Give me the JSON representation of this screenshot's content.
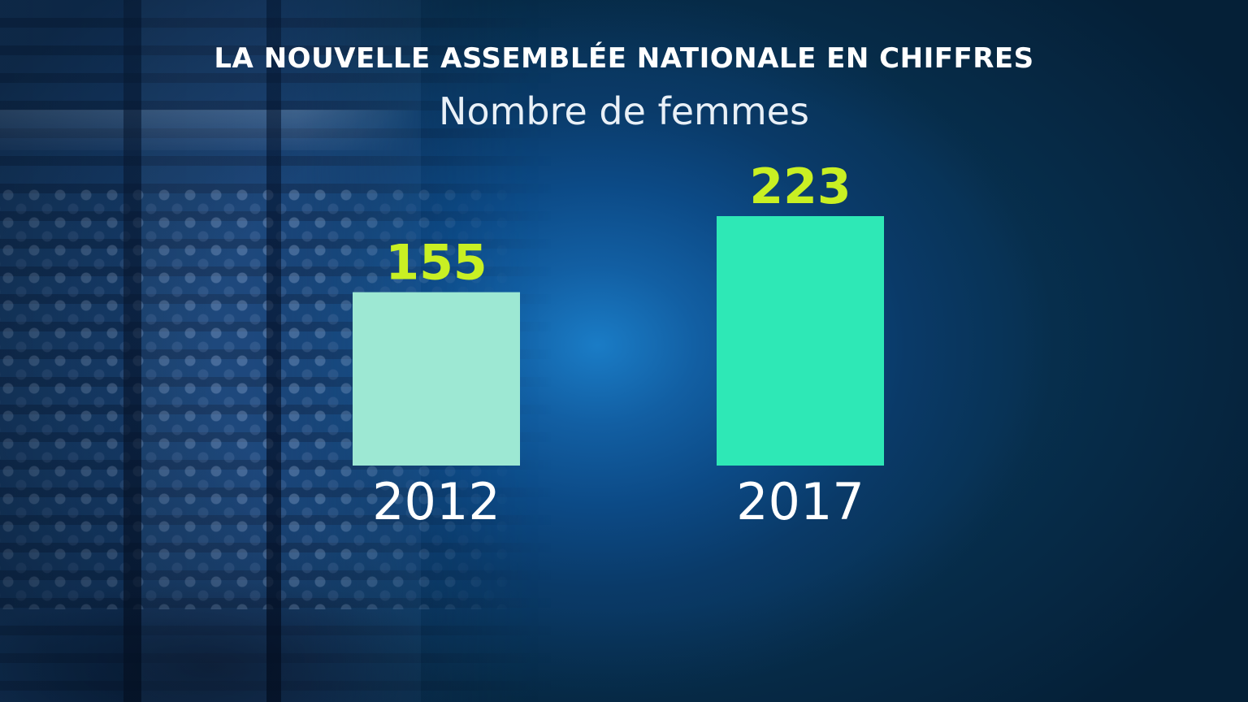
{
  "chart_data": {
    "type": "bar",
    "title": "LA NOUVELLE ASSEMBLÉE NATIONALE EN CHIFFRES",
    "subtitle": "Nombre de femmes",
    "categories": [
      "2012",
      "2017"
    ],
    "values": [
      155,
      223
    ],
    "xlabel": "",
    "ylabel": "",
    "ylim": [
      0,
      245
    ],
    "grid": false,
    "bar_colors": [
      "#9de8d3",
      "#2ee8b6"
    ],
    "value_label_color": "#c9f023",
    "tick_label_color": "#ffffff"
  }
}
